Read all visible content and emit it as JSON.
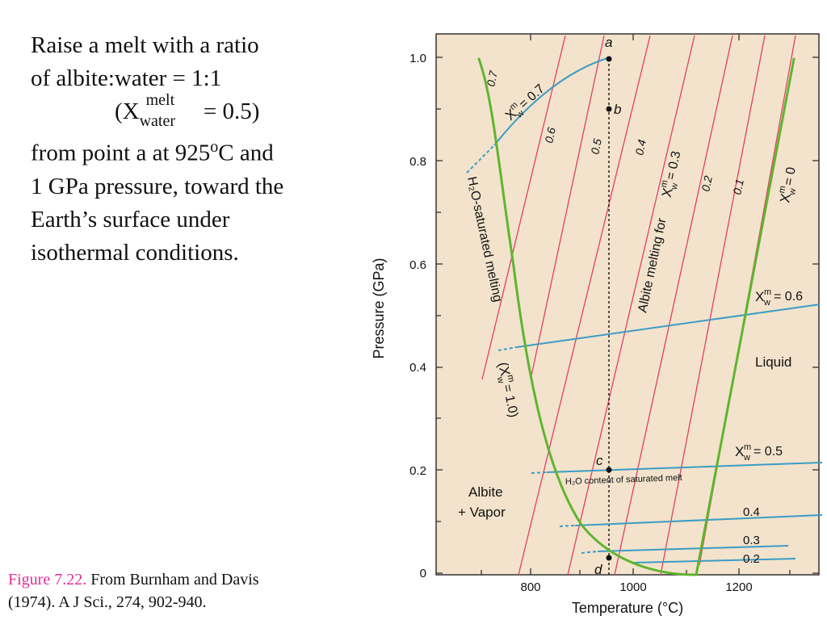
{
  "slide": {
    "line1": "Raise a melt with a ratio",
    "line2": "of albite:water = 1:1",
    "line3_open": "(X",
    "line3_sup": "melt",
    "line3_sub": "water",
    "line3_close": " = 0.5)",
    "line4_a": "from point a at 925",
    "line4_sup": "o",
    "line4_b": "C and",
    "line5": "1 GPa pressure, toward the",
    "line6": "Earth’s surface under",
    "line7": "isothermal conditions."
  },
  "caption": {
    "figure": "Figure 7.22.",
    "source1": " From Burnham and Davis",
    "source2": "(1974). A J Sci., 274, 902-940."
  },
  "diagram": {
    "xlabel": "Temperature (°C)",
    "ylabel": "Pressure (GPa)",
    "xticks": [
      "800",
      "1000",
      "1200"
    ],
    "yticks": [
      "0",
      "0.2",
      "0.4",
      "0.6",
      "0.8",
      "1.0"
    ],
    "regions": {
      "liquid": "Liquid",
      "albite": "Albite",
      "vapor": "+ Vapor"
    },
    "points": {
      "a": "a",
      "b": "b",
      "c": "c",
      "d": "d"
    },
    "labels": {
      "h2o_sat": "H₂O-saturated melting",
      "xw_1": "(X",
      "xw_1_sup": "m",
      "xw_1_sub": "w",
      "xw_1_val": "= 1.0)",
      "albite_melting": "Albite melting for",
      "x_sym": "X",
      "m_sup": "m",
      "w_sub": "w",
      "eq03": "= 0.3",
      "eq07": "= 0.7",
      "eq0": "= 0",
      "eq06": "= 0.6",
      "eq05": "= 0.5",
      "h2o_content": "H₂O content of saturated melt"
    },
    "isopleth_labels": [
      "0.7",
      "0.6",
      "0.5",
      "0.4",
      "0.2",
      "0.1"
    ],
    "low_isobar_labels": [
      "0.4",
      "0.3",
      "0.2"
    ],
    "colors": {
      "background": "#f3e3cc",
      "green": "#5fb52e",
      "blue": "#3c9cc4",
      "red": "#e23f68"
    }
  }
}
